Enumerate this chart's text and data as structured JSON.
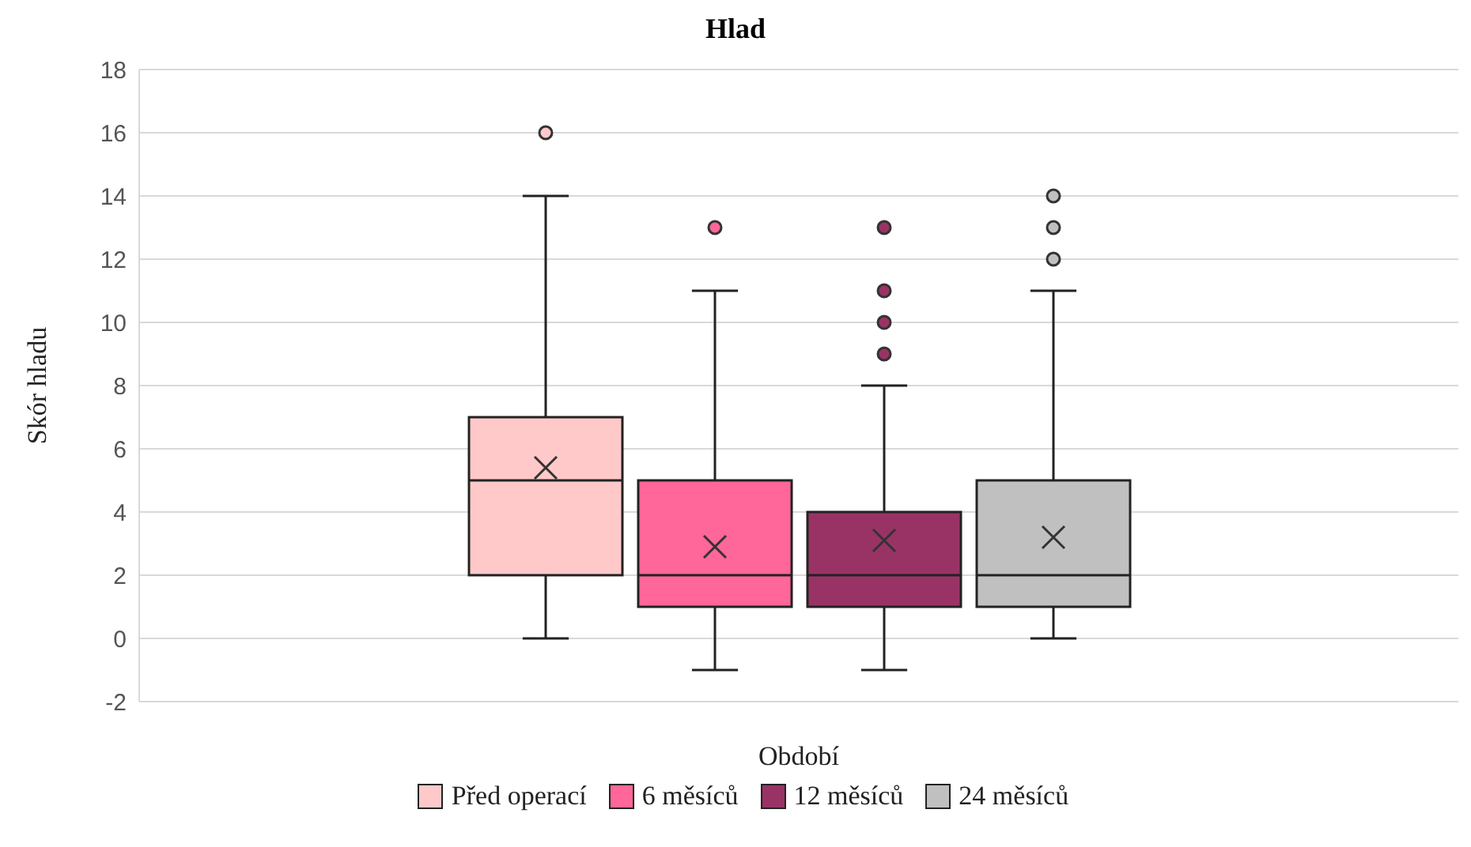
{
  "chart_data": {
    "type": "box",
    "title": "Hlad",
    "xlabel": "Období",
    "ylabel": "Skór hladu",
    "categories": [
      null
    ],
    "ylim": [
      -2,
      18
    ],
    "yticks": [
      -2,
      0,
      2,
      4,
      6,
      8,
      10,
      12,
      14,
      16,
      18
    ],
    "grid": "y",
    "legend": "bottom",
    "series": [
      {
        "name": "Před operací",
        "color": "#ffc9c9",
        "boxes": [
          {
            "low": 0,
            "q1": 2,
            "median": 5,
            "q3": 7,
            "high": 14,
            "mean": 5.4,
            "outliers": [
              16
            ]
          }
        ]
      },
      {
        "name": "6 měsíců",
        "color": "#ff6699",
        "boxes": [
          {
            "low": -1,
            "q1": 1,
            "median": 2,
            "q3": 5,
            "high": 11,
            "mean": 2.9,
            "outliers": [
              13
            ]
          }
        ]
      },
      {
        "name": "12 měsíců",
        "color": "#993366",
        "boxes": [
          {
            "low": -1,
            "q1": 1,
            "median": 2,
            "q3": 4,
            "high": 8,
            "mean": 3.1,
            "outliers": [
              13,
              11,
              10,
              9
            ]
          }
        ]
      },
      {
        "name": "24 měsíců",
        "color": "#c0c0c0",
        "boxes": [
          {
            "low": 0,
            "q1": 1,
            "median": 2,
            "q3": 5,
            "high": 11,
            "mean": 3.2,
            "outliers": [
              14,
              13,
              12
            ]
          }
        ]
      }
    ]
  }
}
